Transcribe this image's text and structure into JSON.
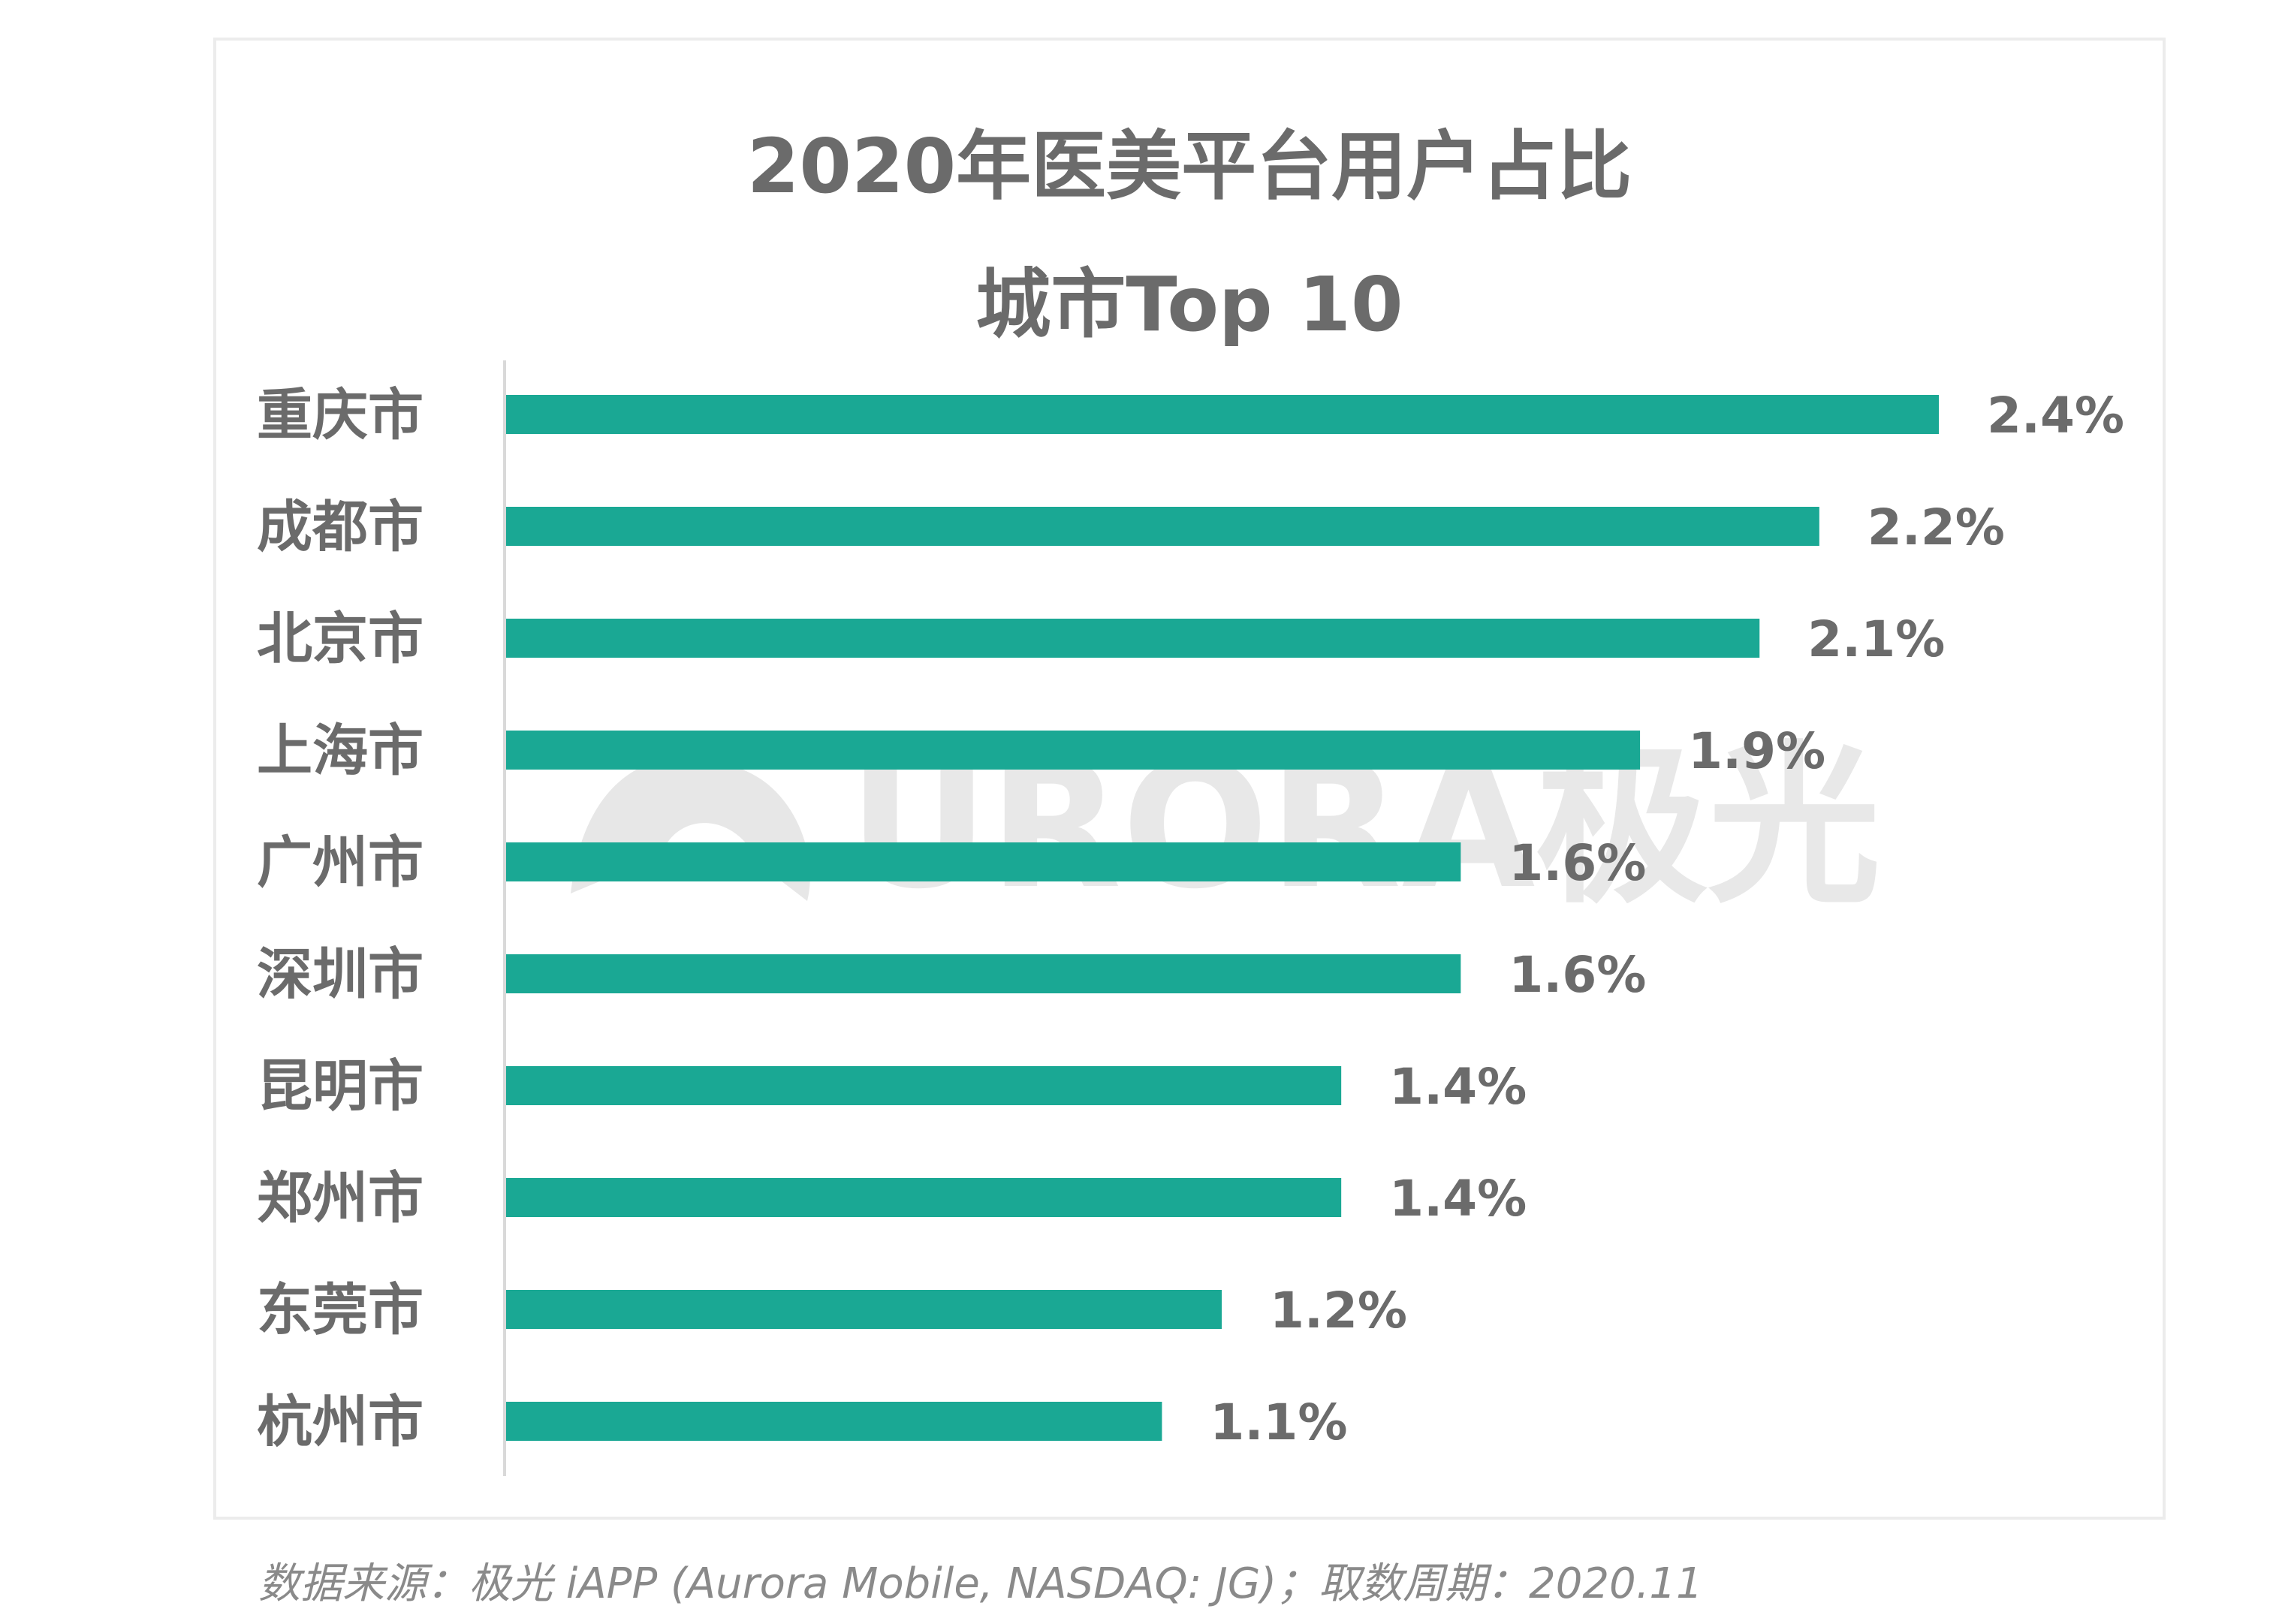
{
  "chart_data": {
    "type": "bar",
    "orientation": "horizontal",
    "title_lines": [
      "2020年医美平台用户占比",
      "城市Top 10"
    ],
    "categories": [
      "重庆市",
      "成都市",
      "北京市",
      "上海市",
      "广州市",
      "深圳市",
      "昆明市",
      "郑州市",
      "东莞市",
      "杭州市"
    ],
    "values": [
      2.4,
      2.2,
      2.1,
      1.9,
      1.6,
      1.6,
      1.4,
      1.4,
      1.2,
      1.1
    ],
    "value_labels": [
      "2.4%",
      "2.2%",
      "2.1%",
      "1.9%",
      "1.6%",
      "1.6%",
      "1.4%",
      "1.4%",
      "1.2%",
      "1.1%"
    ],
    "unit": "%",
    "xlim": [
      0,
      2.4
    ],
    "grid": false,
    "legend": "none",
    "bar_color": "#1aa894"
  },
  "source_note": "数据来源：极光 iAPP (Aurora Mobile, NASDAQ: JG)；取数周期：2020.11",
  "watermark": {
    "text": "URORA极光",
    "icon": "aurora-logo-icon",
    "color": "#e3e3e3"
  },
  "colors": {
    "title": "#6b6b6b",
    "label": "#6b6b6b",
    "frame": "#ececec",
    "axis": "#d9d9d9"
  }
}
